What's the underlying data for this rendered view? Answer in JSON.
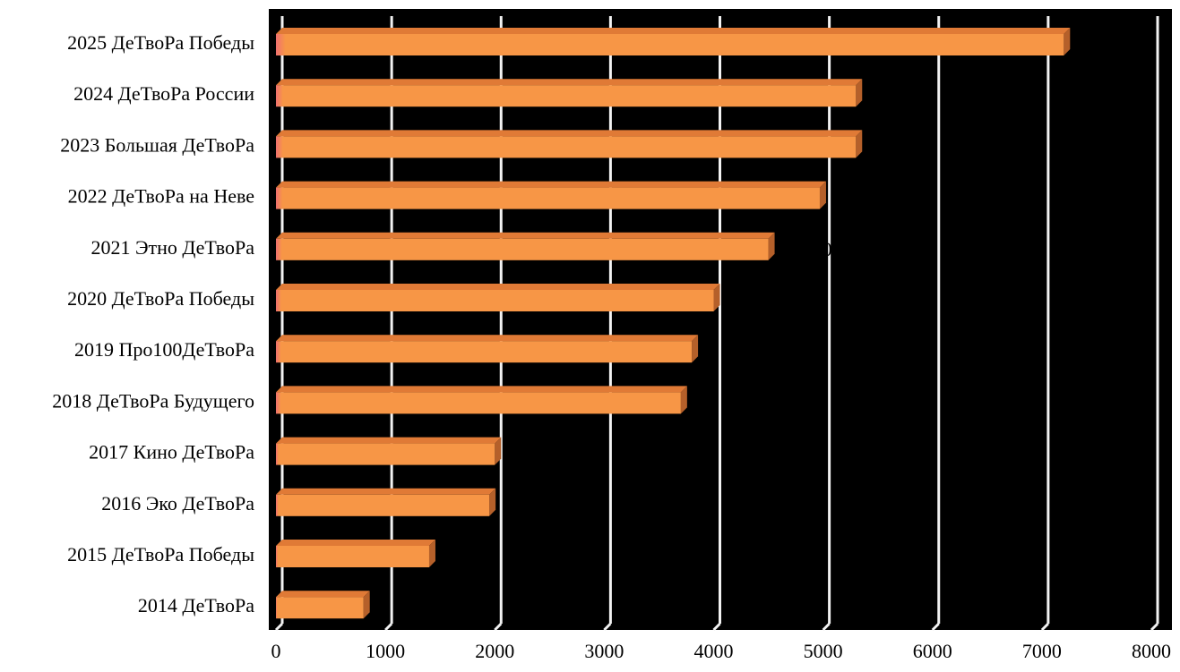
{
  "chart_data": {
    "type": "bar",
    "orientation": "horizontal",
    "categories": [
      "2025 ДеТвоРа Победы",
      "2024 ДеТвоРа России",
      "2023 Большая ДеТвоРа",
      "2022 ДеТвоРа на Неве",
      "2021 Этно ДеТвоРа",
      "2020 ДеТвоРа Победы",
      "2019 Про100ДеТвоРа",
      "2018 ДеТвоРа Будущего",
      "2017 Кино ДеТвоРа",
      "2016 Эко ДеТвоРа",
      "2015 ДеТвоРа Победы",
      "2014 ДеТвоРа"
    ],
    "values": [
      7200,
      5300,
      5300,
      4970,
      4500,
      4000,
      3800,
      3700,
      2000,
      1950,
      1400,
      800
    ],
    "xlim": [
      0,
      8000
    ],
    "xticks": [
      "0",
      "1000",
      "2000",
      "3000",
      "4000",
      "5000",
      "6000",
      "7000",
      "8000"
    ],
    "grid": true,
    "title": "",
    "xlabel": "",
    "ylabel": "",
    "data_labels_visible": [
      "",
      "",
      "",
      "",
      "0",
      "",
      "8",
      "0",
      "",
      "",
      "",
      "0"
    ],
    "colors": {
      "plot_bg": "#000000",
      "bar_face": "#F79646",
      "bar_top": "#E07A36",
      "bar_side": "#B5602A",
      "bar_base_tint": "#F06A6A",
      "gridline": "#F2F2F2",
      "text": "#000000"
    }
  }
}
